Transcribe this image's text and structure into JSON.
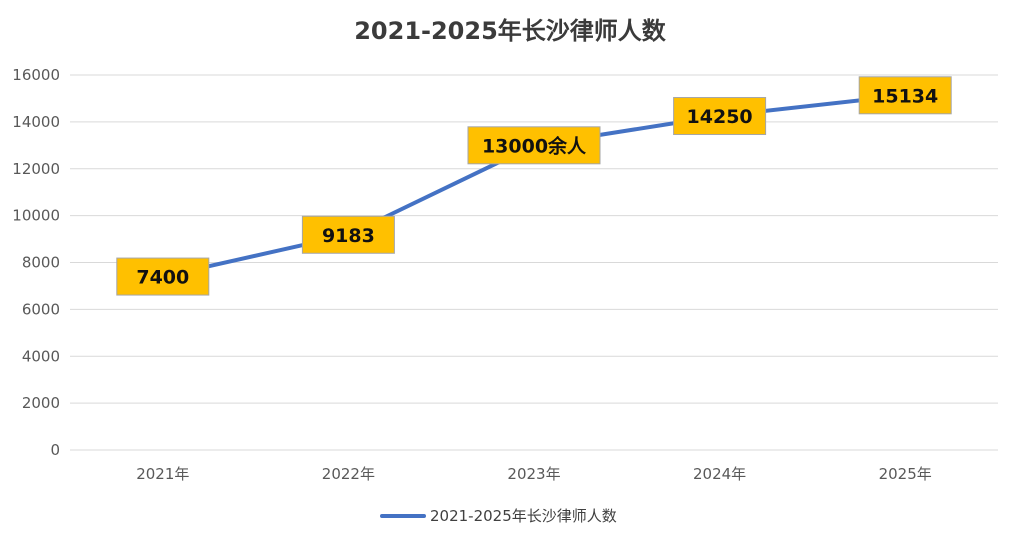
{
  "chart_data": {
    "type": "line",
    "title": "2021-2025年长沙律师人数",
    "categories": [
      "2021年",
      "2022年",
      "2023年",
      "2024年",
      "2025年"
    ],
    "series": [
      {
        "name": "2021-2025年长沙律师人数",
        "values": [
          7400,
          9183,
          13000,
          14250,
          15134
        ],
        "data_labels": [
          "7400",
          "9183",
          "13000余人",
          "14250",
          "15134"
        ]
      }
    ],
    "y_ticks": [
      "0",
      "2000",
      "4000",
      "6000",
      "8000",
      "10000",
      "12000",
      "14000",
      "16000"
    ],
    "ylim": [
      0,
      16000
    ],
    "grid": true,
    "legend_position": "bottom",
    "colors": {
      "line": "#4472c4",
      "label_fill": "#ffc000",
      "label_border": "#a6a6a6",
      "gridline": "#d9d9d9"
    }
  }
}
